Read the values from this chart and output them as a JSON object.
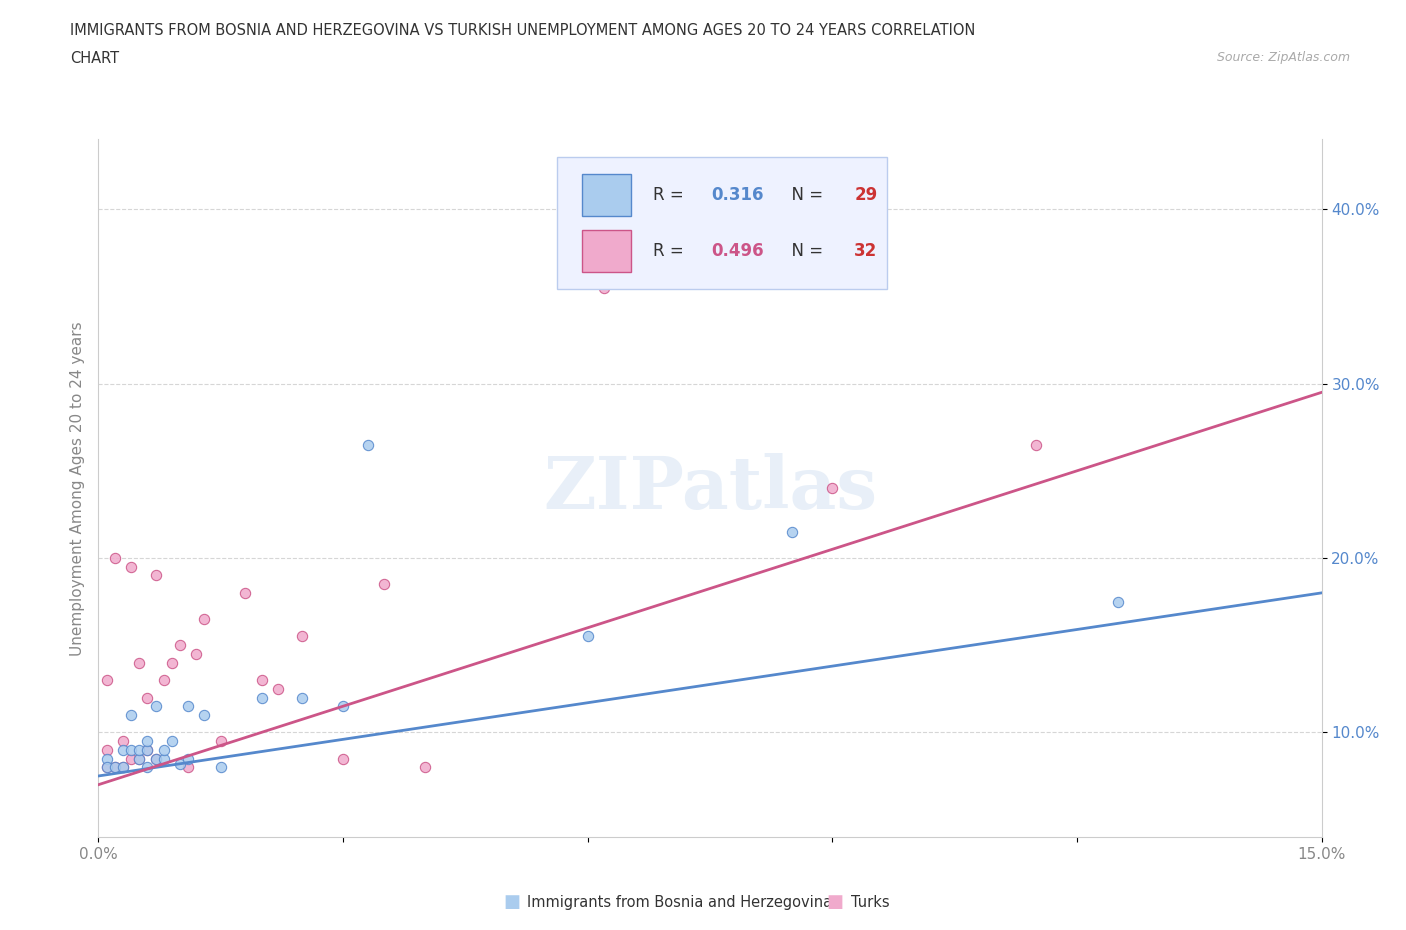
{
  "title_line1": "IMMIGRANTS FROM BOSNIA AND HERZEGOVINA VS TURKISH UNEMPLOYMENT AMONG AGES 20 TO 24 YEARS CORRELATION",
  "title_line2": "CHART",
  "source": "Source: ZipAtlas.com",
  "ylabel": "Unemployment Among Ages 20 to 24 years",
  "xlim": [
    0.0,
    0.15
  ],
  "ylim": [
    0.04,
    0.44
  ],
  "xticks": [
    0.0,
    0.03,
    0.06,
    0.09,
    0.12,
    0.15
  ],
  "xticklabels": [
    "0.0%",
    "",
    "",
    "",
    "",
    "15.0%"
  ],
  "yticks": [
    0.1,
    0.2,
    0.3,
    0.4
  ],
  "yticklabels": [
    "10.0%",
    "20.0%",
    "30.0%",
    "40.0%"
  ],
  "bosnia_color": "#aaccee",
  "turks_color": "#f0aacc",
  "bosnia_line_color": "#5588cc",
  "turks_line_color": "#cc5588",
  "R_bosnia": 0.316,
  "N_bosnia": 29,
  "R_turks": 0.496,
  "N_turks": 32,
  "bosnia_scatter_x": [
    0.001,
    0.001,
    0.002,
    0.003,
    0.003,
    0.004,
    0.004,
    0.005,
    0.005,
    0.006,
    0.006,
    0.006,
    0.007,
    0.007,
    0.008,
    0.008,
    0.009,
    0.01,
    0.011,
    0.011,
    0.013,
    0.015,
    0.02,
    0.025,
    0.03,
    0.033,
    0.06,
    0.085,
    0.125
  ],
  "bosnia_scatter_y": [
    0.085,
    0.08,
    0.08,
    0.09,
    0.08,
    0.09,
    0.11,
    0.085,
    0.09,
    0.08,
    0.09,
    0.095,
    0.085,
    0.115,
    0.085,
    0.09,
    0.095,
    0.082,
    0.085,
    0.115,
    0.11,
    0.08,
    0.12,
    0.12,
    0.115,
    0.265,
    0.155,
    0.215,
    0.175
  ],
  "turks_scatter_x": [
    0.001,
    0.001,
    0.001,
    0.002,
    0.002,
    0.003,
    0.003,
    0.004,
    0.004,
    0.005,
    0.005,
    0.006,
    0.006,
    0.007,
    0.007,
    0.008,
    0.009,
    0.01,
    0.011,
    0.012,
    0.013,
    0.015,
    0.018,
    0.02,
    0.022,
    0.025,
    0.03,
    0.035,
    0.04,
    0.062,
    0.09,
    0.115
  ],
  "turks_scatter_y": [
    0.08,
    0.09,
    0.13,
    0.08,
    0.2,
    0.08,
    0.095,
    0.085,
    0.195,
    0.085,
    0.14,
    0.09,
    0.12,
    0.085,
    0.19,
    0.13,
    0.14,
    0.15,
    0.08,
    0.145,
    0.165,
    0.095,
    0.18,
    0.13,
    0.125,
    0.155,
    0.085,
    0.185,
    0.08,
    0.355,
    0.24,
    0.265
  ],
  "watermark": "ZIPatlas",
  "background_color": "#ffffff",
  "grid_color": "#cccccc",
  "title_color": "#333333",
  "tick_color": "#888888",
  "r_color_bosnia": "#5588cc",
  "r_color_turks": "#cc5588",
  "n_color": "#cc3333"
}
